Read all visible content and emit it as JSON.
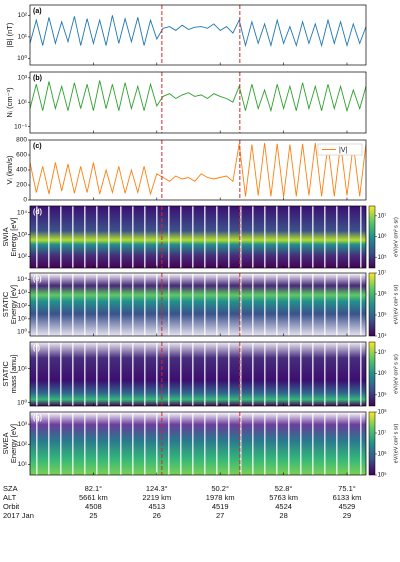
{
  "events": {
    "x": [
      26.08,
      27.31
    ],
    "color": "#d62728"
  },
  "xlim": [
    24,
    29.3
  ],
  "xticks": [
    25,
    26,
    27,
    28,
    29
  ],
  "footer": {
    "labels": [
      "SZA",
      "ALT",
      "Orbit",
      "2017 Jan"
    ],
    "sza": [
      "82.1°",
      "124.3°",
      "50.2°",
      "52.8°",
      "75.1°"
    ],
    "alt": [
      "5661 km",
      "2219 km",
      "1978 km",
      "5763 km",
      "6133 km"
    ],
    "orbit": [
      4508,
      4513,
      4519,
      4524,
      4529
    ]
  },
  "chart_data": [
    {
      "type": "line",
      "panel": "(a)",
      "ylabel": "|B| (nT)",
      "log": true,
      "ylim": [
        0.5,
        300
      ],
      "yticks": [
        {
          "value": 1,
          "label": "10⁰"
        },
        {
          "value": 10,
          "label": "10¹"
        },
        {
          "value": 100,
          "label": "10²"
        }
      ],
      "x": [
        24.0,
        24.1,
        24.2,
        24.3,
        24.4,
        24.5,
        24.6,
        24.7,
        24.8,
        24.9,
        25.0,
        25.1,
        25.2,
        25.3,
        25.4,
        25.5,
        25.6,
        25.7,
        25.8,
        25.9,
        26.0,
        26.1,
        26.2,
        26.3,
        26.4,
        26.5,
        26.6,
        26.7,
        26.8,
        26.9,
        27.0,
        27.1,
        27.2,
        27.3,
        27.4,
        27.5,
        27.6,
        27.7,
        27.8,
        27.9,
        28.0,
        28.1,
        28.2,
        28.3,
        28.4,
        28.5,
        28.6,
        28.7,
        28.8,
        28.9,
        29.0,
        29.1,
        29.2,
        29.3
      ],
      "series": [
        {
          "color": "#1f77b4",
          "values": [
            5,
            60,
            4,
            80,
            5,
            50,
            6,
            90,
            4,
            70,
            5,
            60,
            4,
            100,
            5,
            70,
            6,
            80,
            4,
            60,
            8,
            25,
            30,
            20,
            35,
            22,
            28,
            30,
            25,
            40,
            20,
            30,
            15,
            60,
            4,
            50,
            5,
            40,
            4,
            60,
            5,
            30,
            4,
            50,
            5,
            40,
            4,
            60,
            5,
            50,
            4,
            40,
            5,
            30
          ]
        }
      ]
    },
    {
      "type": "line",
      "panel": "(b)",
      "ylabel": "Nᵢ (cm⁻³)",
      "log": true,
      "ylim": [
        0.03,
        3000
      ],
      "yticks": [
        {
          "value": 0.1,
          "label": "10⁻¹"
        },
        {
          "value": 10,
          "label": "10¹"
        },
        {
          "value": 1000,
          "label": "10³"
        }
      ],
      "x": [
        24.0,
        24.1,
        24.2,
        24.3,
        24.4,
        24.5,
        24.6,
        24.7,
        24.8,
        24.9,
        25.0,
        25.1,
        25.2,
        25.3,
        25.4,
        25.5,
        25.6,
        25.7,
        25.8,
        25.9,
        26.0,
        26.1,
        26.2,
        26.3,
        26.4,
        26.5,
        26.6,
        26.7,
        26.8,
        26.9,
        27.0,
        27.1,
        27.2,
        27.3,
        27.4,
        27.5,
        27.6,
        27.7,
        27.8,
        27.9,
        28.0,
        28.1,
        28.2,
        28.3,
        28.4,
        28.5,
        28.6,
        28.7,
        28.8,
        28.9,
        29.0,
        29.1,
        29.2,
        29.3
      ],
      "series": [
        {
          "color": "#2ca02c",
          "values": [
            3,
            300,
            2,
            500,
            3,
            200,
            2,
            400,
            3,
            300,
            2,
            600,
            3,
            300,
            2,
            400,
            3,
            200,
            2,
            300,
            5,
            30,
            50,
            20,
            40,
            60,
            30,
            40,
            20,
            50,
            30,
            20,
            10,
            200,
            2,
            300,
            3,
            100,
            2,
            300,
            3,
            200,
            2,
            400,
            3,
            200,
            2,
            300,
            3,
            200,
            2,
            100,
            3,
            200
          ]
        }
      ]
    },
    {
      "type": "line",
      "panel": "(c)",
      "ylabel": "Vᵢ (km/s)",
      "log": false,
      "ylim": [
        0,
        800
      ],
      "yticks": [
        0,
        200,
        400,
        600,
        800
      ],
      "legend": "top right",
      "x": [
        24.0,
        24.1,
        24.2,
        24.3,
        24.4,
        24.5,
        24.6,
        24.7,
        24.8,
        24.9,
        25.0,
        25.1,
        25.2,
        25.3,
        25.4,
        25.5,
        25.6,
        25.7,
        25.8,
        25.9,
        26.0,
        26.1,
        26.2,
        26.3,
        26.4,
        26.5,
        26.6,
        26.7,
        26.8,
        26.9,
        27.0,
        27.1,
        27.2,
        27.3,
        27.4,
        27.5,
        27.6,
        27.7,
        27.8,
        27.9,
        28.0,
        28.1,
        28.2,
        28.3,
        28.4,
        28.5,
        28.6,
        28.7,
        28.8,
        28.9,
        29.0,
        29.1,
        29.2,
        29.3
      ],
      "series": [
        {
          "name": "|V|",
          "color": "#ff7f0e",
          "values": [
            500,
            100,
            450,
            80,
            500,
            120,
            480,
            90,
            450,
            100,
            500,
            80,
            400,
            100,
            450,
            90,
            400,
            100,
            450,
            80,
            350,
            300,
            250,
            320,
            280,
            300,
            250,
            350,
            300,
            280,
            300,
            320,
            250,
            750,
            50,
            740,
            60,
            760,
            50,
            750,
            40,
            740,
            50,
            750,
            60,
            760,
            50,
            740,
            50,
            750,
            60,
            740,
            50,
            750
          ]
        }
      ]
    },
    {
      "type": "spectrogram",
      "panel": "(d)",
      "ylabel": [
        "SWIA",
        "Energy [eV]"
      ],
      "log": true,
      "ylim": [
        30,
        20000
      ],
      "yticks": [
        {
          "value": 100,
          "label": "10²"
        },
        {
          "value": 1000,
          "label": "10³"
        },
        {
          "value": 10000,
          "label": "10⁴"
        }
      ],
      "clim": [
        30000,
        30000000
      ],
      "cticks": [
        {
          "value": 100000,
          "label": "10⁵"
        },
        {
          "value": 1000000,
          "label": "10⁶"
        },
        {
          "value": 10000000,
          "label": "10⁷"
        }
      ],
      "clabel": "eV/(eV cm² s sr)"
    },
    {
      "type": "spectrogram",
      "panel": "(e)",
      "ylabel": [
        "STATIC",
        "Energy [eV]"
      ],
      "log": true,
      "ylim": [
        0.5,
        30000
      ],
      "yticks": [
        {
          "value": 1,
          "label": "10⁰"
        },
        {
          "value": 10,
          "label": "10¹"
        },
        {
          "value": 100,
          "label": "10²"
        },
        {
          "value": 1000,
          "label": "10³"
        },
        {
          "value": 10000,
          "label": "10⁴"
        }
      ],
      "clim": [
        10000,
        10000000
      ],
      "cticks": [
        {
          "value": 10000,
          "label": "10⁴"
        },
        {
          "value": 100000,
          "label": "10⁵"
        },
        {
          "value": 1000000,
          "label": "10⁶"
        },
        {
          "value": 10000000,
          "label": "10⁷"
        }
      ],
      "clabel": "eV/(eV cm² s sr)"
    },
    {
      "type": "spectrogram",
      "panel": "(f)",
      "ylabel": [
        "STATIC",
        "mass [amu]"
      ],
      "log": true,
      "ylim": [
        0.8,
        60
      ],
      "yticks": [
        {
          "value": 1,
          "label": "10⁰"
        },
        {
          "value": 10,
          "label": "10¹"
        }
      ],
      "clim": [
        30000,
        30000000
      ],
      "cticks": [
        {
          "value": 100000,
          "label": "10⁵"
        },
        {
          "value": 1000000,
          "label": "10⁶"
        },
        {
          "value": 10000000,
          "label": "10⁷"
        }
      ],
      "clabel": "eV/(eV cm² s sr)"
    },
    {
      "type": "spectrogram",
      "panel": "(g)",
      "ylabel": [
        "SWEA",
        "Energy [eV]"
      ],
      "log": true,
      "ylim": [
        3,
        4000
      ],
      "yticks": [
        {
          "value": 10,
          "label": "10¹"
        },
        {
          "value": 100,
          "label": "10²"
        },
        {
          "value": 1000,
          "label": "10³"
        }
      ],
      "clim": [
        100000,
        100000000
      ],
      "cticks": [
        {
          "value": 100000,
          "label": "10⁵"
        },
        {
          "value": 1000000,
          "label": "10⁶"
        },
        {
          "value": 10000000,
          "label": "10⁷"
        },
        {
          "value": 100000000,
          "label": "10⁸"
        }
      ],
      "clabel": "eV/(eV cm² s sr)"
    }
  ]
}
